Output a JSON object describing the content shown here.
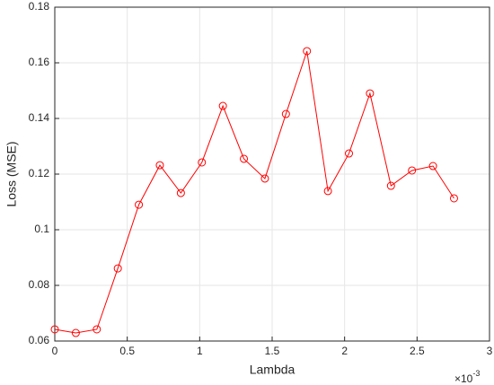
{
  "chart_data": {
    "type": "line",
    "x_label": "Lambda",
    "y_label": "Loss (MSE)",
    "x_multiplier": "×10",
    "x_multiplier_exp": "-3",
    "x": [
      0,
      0.145,
      0.29,
      0.435,
      0.58,
      0.725,
      0.87,
      1.015,
      1.16,
      1.305,
      1.45,
      1.595,
      1.74,
      1.885,
      2.03,
      2.175,
      2.32,
      2.465,
      2.61,
      2.755
    ],
    "series": [
      {
        "color": "#ff0000",
        "values": [
          0.0642,
          0.0629,
          0.0642,
          0.0861,
          0.109,
          0.1232,
          0.1132,
          0.1242,
          0.1445,
          0.1255,
          0.1184,
          0.1416,
          0.1642,
          0.1139,
          0.1274,
          0.149,
          0.1158,
          0.1213,
          0.1229,
          0.1113
        ]
      }
    ],
    "xlim": [
      0,
      3
    ],
    "ylim": [
      0.06,
      0.18
    ],
    "xticks": [
      0,
      0.5,
      1,
      1.5,
      2,
      2.5,
      3
    ],
    "yticks": [
      0.06,
      0.08,
      0.1,
      0.12,
      0.14,
      0.16,
      0.18
    ],
    "grid": true,
    "marker": "circle"
  }
}
